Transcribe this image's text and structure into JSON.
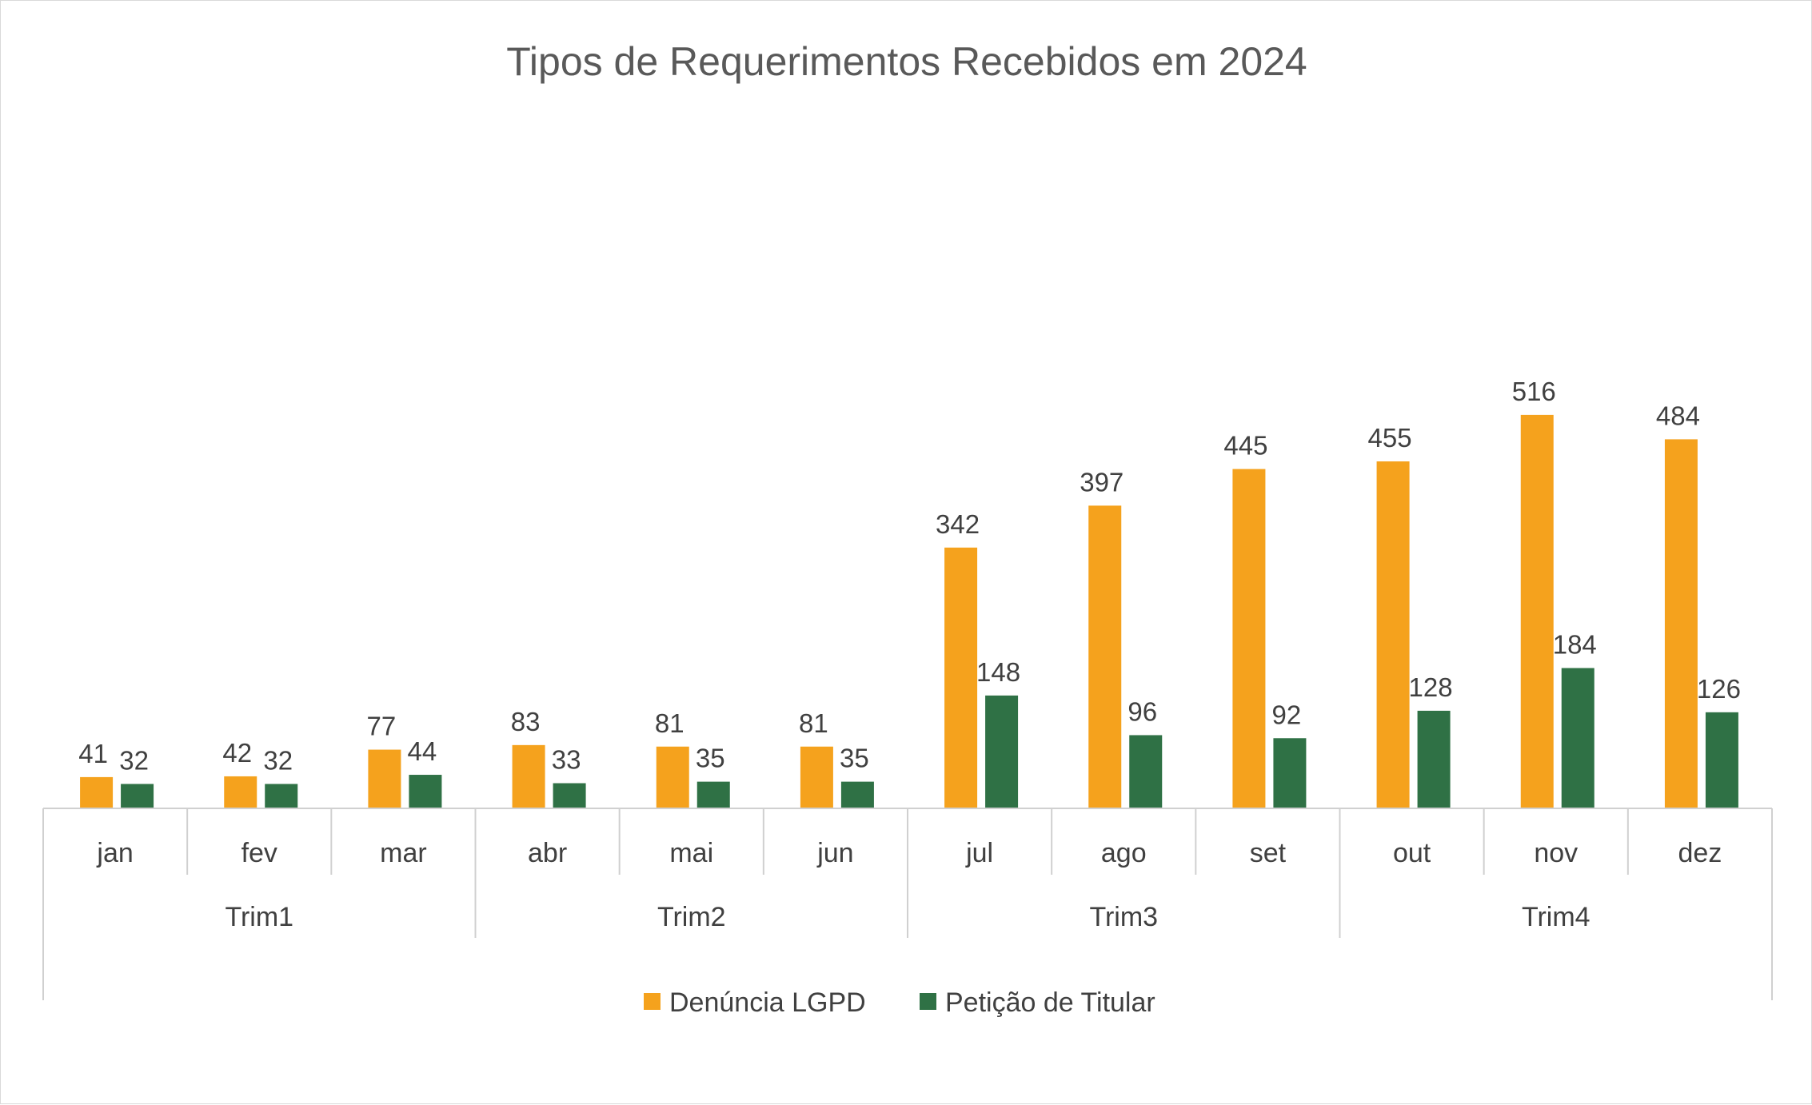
{
  "chart_data": {
    "type": "bar",
    "title": "Tipos de Requerimentos Recebidos em 2024",
    "xlabel": "",
    "ylabel": "",
    "grid": false,
    "legend_position": "bottom",
    "categories": [
      "jan",
      "fev",
      "mar",
      "abr",
      "mai",
      "jun",
      "jul",
      "ago",
      "set",
      "out",
      "nov",
      "dez"
    ],
    "groups": [
      {
        "label": "Trim1",
        "categories": [
          "jan",
          "fev",
          "mar"
        ]
      },
      {
        "label": "Trim2",
        "categories": [
          "abr",
          "mai",
          "jun"
        ]
      },
      {
        "label": "Trim3",
        "categories": [
          "jul",
          "ago",
          "set"
        ]
      },
      {
        "label": "Trim4",
        "categories": [
          "out",
          "nov",
          "dez"
        ]
      }
    ],
    "series": [
      {
        "name": "Denúncia LGPD",
        "color": "#F5A21D",
        "values": [
          41,
          42,
          77,
          83,
          81,
          81,
          342,
          397,
          445,
          455,
          516,
          484
        ]
      },
      {
        "name": "Petição de Titular",
        "color": "#2F7145",
        "values": [
          32,
          32,
          44,
          33,
          35,
          35,
          148,
          96,
          92,
          128,
          184,
          126
        ]
      }
    ],
    "ylim": [
      0,
      600
    ]
  }
}
